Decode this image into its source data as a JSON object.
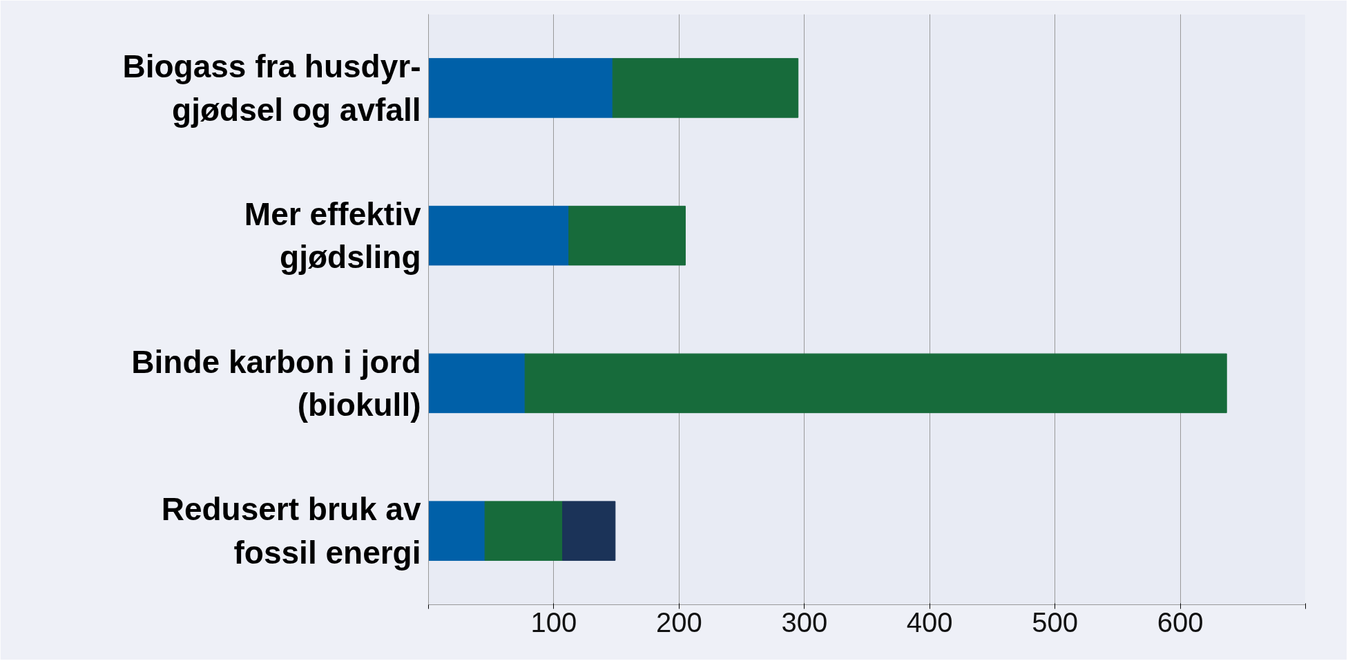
{
  "chart_data": {
    "type": "bar",
    "orientation": "horizontal",
    "stacked": true,
    "categories": [
      "Biogass fra husdyr-\ngjødsel og avfall",
      "Mer effektiv\ngjødsling",
      "Binde karbon i jord\n(biokull)",
      "Redusert bruk av\nfossil energi"
    ],
    "series": [
      {
        "color": "#0060a8",
        "values": [
          147,
          112,
          77,
          45
        ]
      },
      {
        "color": "#176b3b",
        "values": [
          148,
          93,
          560,
          62
        ]
      },
      {
        "color": "#1b3358",
        "values": [
          null,
          null,
          null,
          42
        ]
      }
    ],
    "xlim": [
      0,
      700
    ],
    "xticks": [
      {
        "value": 0,
        "label": null
      },
      100,
      200,
      300,
      400,
      500,
      600,
      {
        "value": 700,
        "label": null
      }
    ],
    "grid": "x"
  }
}
